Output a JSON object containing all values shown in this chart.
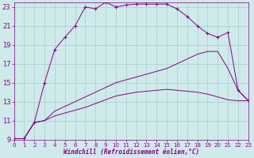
{
  "xlabel": "Windchill (Refroidissement éolien,°C)",
  "bg_color": "#ceeaea",
  "line_color": "#880088",
  "grid_color": "#aacece",
  "xmin": 0,
  "xmax": 23,
  "ymin": 9,
  "ymax": 23.5,
  "yticks": [
    9,
    11,
    13,
    15,
    17,
    19,
    21,
    23
  ],
  "xticks": [
    0,
    1,
    2,
    3,
    4,
    5,
    6,
    7,
    8,
    9,
    10,
    11,
    12,
    13,
    14,
    15,
    16,
    17,
    18,
    19,
    20,
    21,
    22,
    23
  ],
  "series": [
    {
      "x": [
        0,
        1,
        2,
        3,
        4,
        5,
        6,
        7,
        8,
        9,
        10,
        11,
        12,
        13,
        14,
        15,
        16,
        17,
        18,
        19,
        20,
        21,
        22,
        23
      ],
      "y": [
        9.1,
        9.1,
        10.8,
        15.0,
        18.5,
        19.8,
        21.0,
        23.0,
        22.8,
        23.5,
        23.0,
        23.2,
        23.3,
        23.3,
        23.3,
        23.3,
        22.8,
        22.0,
        21.0,
        20.2,
        19.8,
        20.3,
        14.2,
        13.1
      ],
      "marker": "+"
    },
    {
      "x": [
        0,
        1,
        2,
        3,
        4,
        5,
        6,
        7,
        8,
        9,
        10,
        11,
        12,
        13,
        14,
        15,
        16,
        17,
        18,
        19,
        20,
        21,
        22,
        23
      ],
      "y": [
        9.1,
        9.1,
        10.8,
        11.0,
        12.0,
        12.5,
        13.0,
        13.5,
        14.0,
        14.5,
        15.0,
        15.3,
        15.6,
        15.9,
        16.2,
        16.5,
        17.0,
        17.5,
        18.0,
        18.3,
        18.3,
        16.5,
        14.2,
        13.1
      ],
      "marker": null
    },
    {
      "x": [
        0,
        1,
        2,
        3,
        4,
        5,
        6,
        7,
        8,
        9,
        10,
        11,
        12,
        13,
        14,
        15,
        16,
        17,
        18,
        19,
        20,
        21,
        22,
        23
      ],
      "y": [
        9.1,
        9.1,
        10.8,
        11.0,
        11.5,
        11.8,
        12.1,
        12.4,
        12.8,
        13.2,
        13.6,
        13.8,
        14.0,
        14.1,
        14.2,
        14.3,
        14.2,
        14.1,
        14.0,
        13.8,
        13.5,
        13.2,
        13.1,
        13.1
      ],
      "marker": null
    }
  ]
}
